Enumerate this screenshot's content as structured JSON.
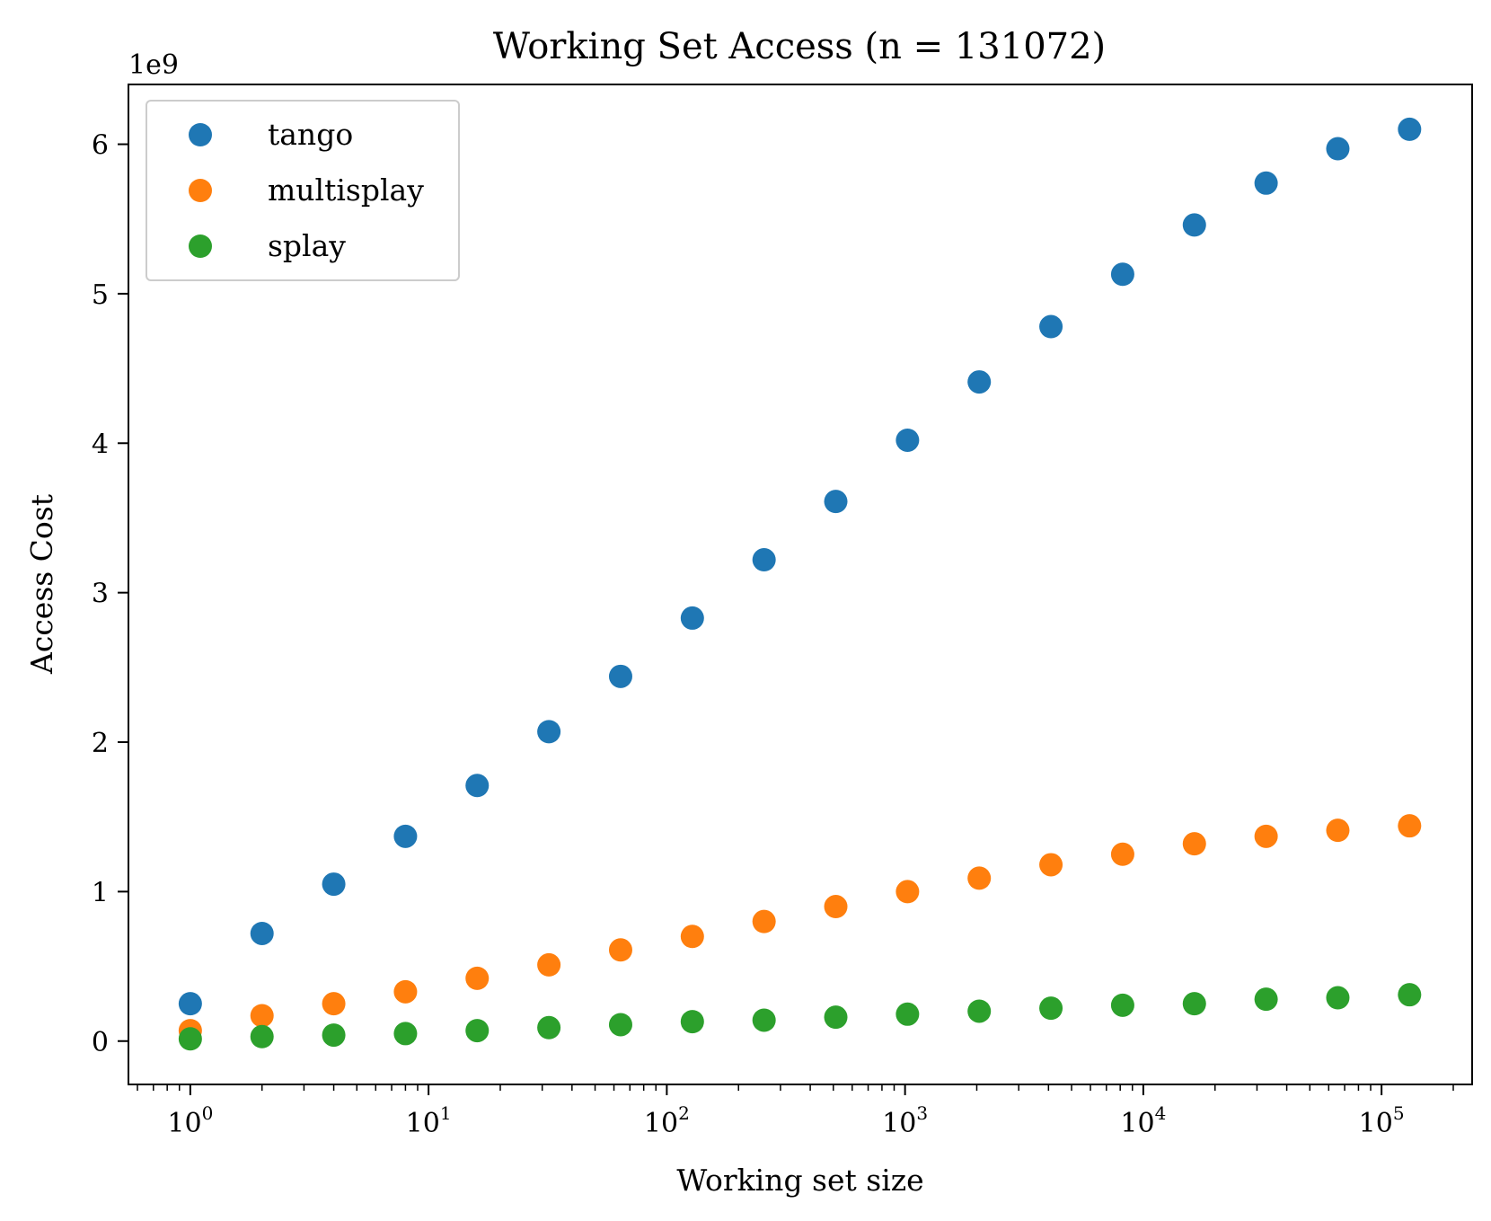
{
  "chart_data": {
    "type": "scatter",
    "title": "Working Set Access (n = 131072)",
    "xlabel": "Working set size",
    "ylabel": "Access Cost",
    "xscale": "log",
    "xlim": [
      0.55,
      240000
    ],
    "ylim": [
      -290000000,
      6400000000
    ],
    "y_offset_label": "1e9",
    "x_ticks": [
      {
        "value": 1,
        "base": "10",
        "exp": "0"
      },
      {
        "value": 10,
        "base": "10",
        "exp": "1"
      },
      {
        "value": 100,
        "base": "10",
        "exp": "2"
      },
      {
        "value": 1000,
        "base": "10",
        "exp": "3"
      },
      {
        "value": 10000,
        "base": "10",
        "exp": "4"
      },
      {
        "value": 100000,
        "base": "10",
        "exp": "5"
      }
    ],
    "y_ticks": [
      {
        "value": 0,
        "label": "0"
      },
      {
        "value": 1000000000,
        "label": "1"
      },
      {
        "value": 2000000000,
        "label": "2"
      },
      {
        "value": 3000000000,
        "label": "3"
      },
      {
        "value": 4000000000,
        "label": "4"
      },
      {
        "value": 5000000000,
        "label": "5"
      },
      {
        "value": 6000000000,
        "label": "6"
      }
    ],
    "grid": false,
    "legend_position": "top-left",
    "x": [
      1,
      2,
      4,
      8,
      16,
      32,
      64,
      128,
      256,
      512,
      1024,
      2048,
      4096,
      8192,
      16384,
      32768,
      65536,
      131072
    ],
    "series": [
      {
        "name": "tango",
        "color": "#1f77b4",
        "values": [
          250000000,
          720000000,
          1050000000,
          1370000000,
          1710000000,
          2070000000,
          2440000000,
          2830000000,
          3220000000,
          3610000000,
          4020000000,
          4410000000,
          4780000000,
          5130000000,
          5460000000,
          5740000000,
          5970000000,
          6100000000
        ]
      },
      {
        "name": "multisplay",
        "color": "#ff7f0e",
        "values": [
          70000000,
          170000000,
          250000000,
          330000000,
          420000000,
          510000000,
          610000000,
          700000000,
          800000000,
          900000000,
          1000000000,
          1090000000,
          1180000000,
          1250000000,
          1320000000,
          1370000000,
          1410000000,
          1440000000
        ]
      },
      {
        "name": "splay",
        "color": "#2ca02c",
        "values": [
          15000000,
          30000000,
          40000000,
          50000000,
          70000000,
          90000000,
          110000000,
          130000000,
          140000000,
          160000000,
          180000000,
          200000000,
          220000000,
          240000000,
          250000000,
          280000000,
          290000000,
          310000000
        ]
      }
    ]
  }
}
